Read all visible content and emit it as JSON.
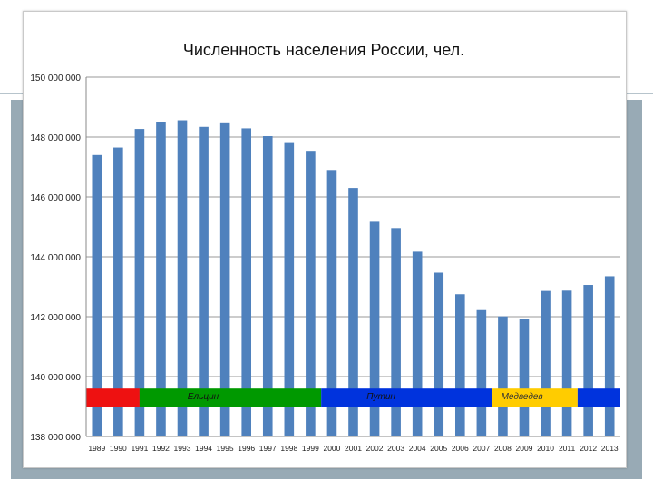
{
  "chart_data": {
    "type": "bar",
    "title": "Численность населения России, чел.",
    "xlabel": "",
    "ylabel": "",
    "ylim": [
      138000000,
      150000000
    ],
    "y_ticks": [
      138000000,
      140000000,
      142000000,
      144000000,
      146000000,
      148000000,
      150000000
    ],
    "y_tick_labels": [
      "138 000 000",
      "140 000 000",
      "142 000 000",
      "144 000 000",
      "146 000 000",
      "148 000 000",
      "150 000 000"
    ],
    "grid": true,
    "legend": "none",
    "categories": [
      "1989",
      "1990",
      "1991",
      "1992",
      "1993",
      "1994",
      "1995",
      "1996",
      "1997",
      "1998",
      "1999",
      "2000",
      "2001",
      "2002",
      "2003",
      "2004",
      "2005",
      "2006",
      "2007",
      "2008",
      "2009",
      "2010",
      "2011",
      "2012",
      "2013"
    ],
    "values": [
      147400000,
      147650000,
      148270000,
      148510000,
      148560000,
      148340000,
      148460000,
      148290000,
      148030000,
      147800000,
      147540000,
      146900000,
      146300000,
      145170000,
      144960000,
      144170000,
      143470000,
      142750000,
      142220000,
      142010000,
      141910000,
      142860000,
      142870000,
      143060000,
      143350000
    ],
    "bar_color": "#4f81bd",
    "eras": [
      {
        "label": "",
        "color": "#ee1111",
        "start_year": 1988.5,
        "end_year": 1991
      },
      {
        "label": "Ельцин",
        "color": "#009900",
        "start_year": 1991,
        "end_year": 1999.5
      },
      {
        "label": "Путин",
        "color": "#0033dd",
        "start_year": 1999.5,
        "end_year": 2007.5
      },
      {
        "label": "Медведев",
        "color": "#ffcc00",
        "start_year": 2007.5,
        "end_year": 2011.5
      },
      {
        "label": "",
        "color": "#0033dd",
        "start_year": 2011.5,
        "end_year": 2013.5
      }
    ],
    "era_band_value_range": [
      139000000,
      139600000
    ]
  }
}
